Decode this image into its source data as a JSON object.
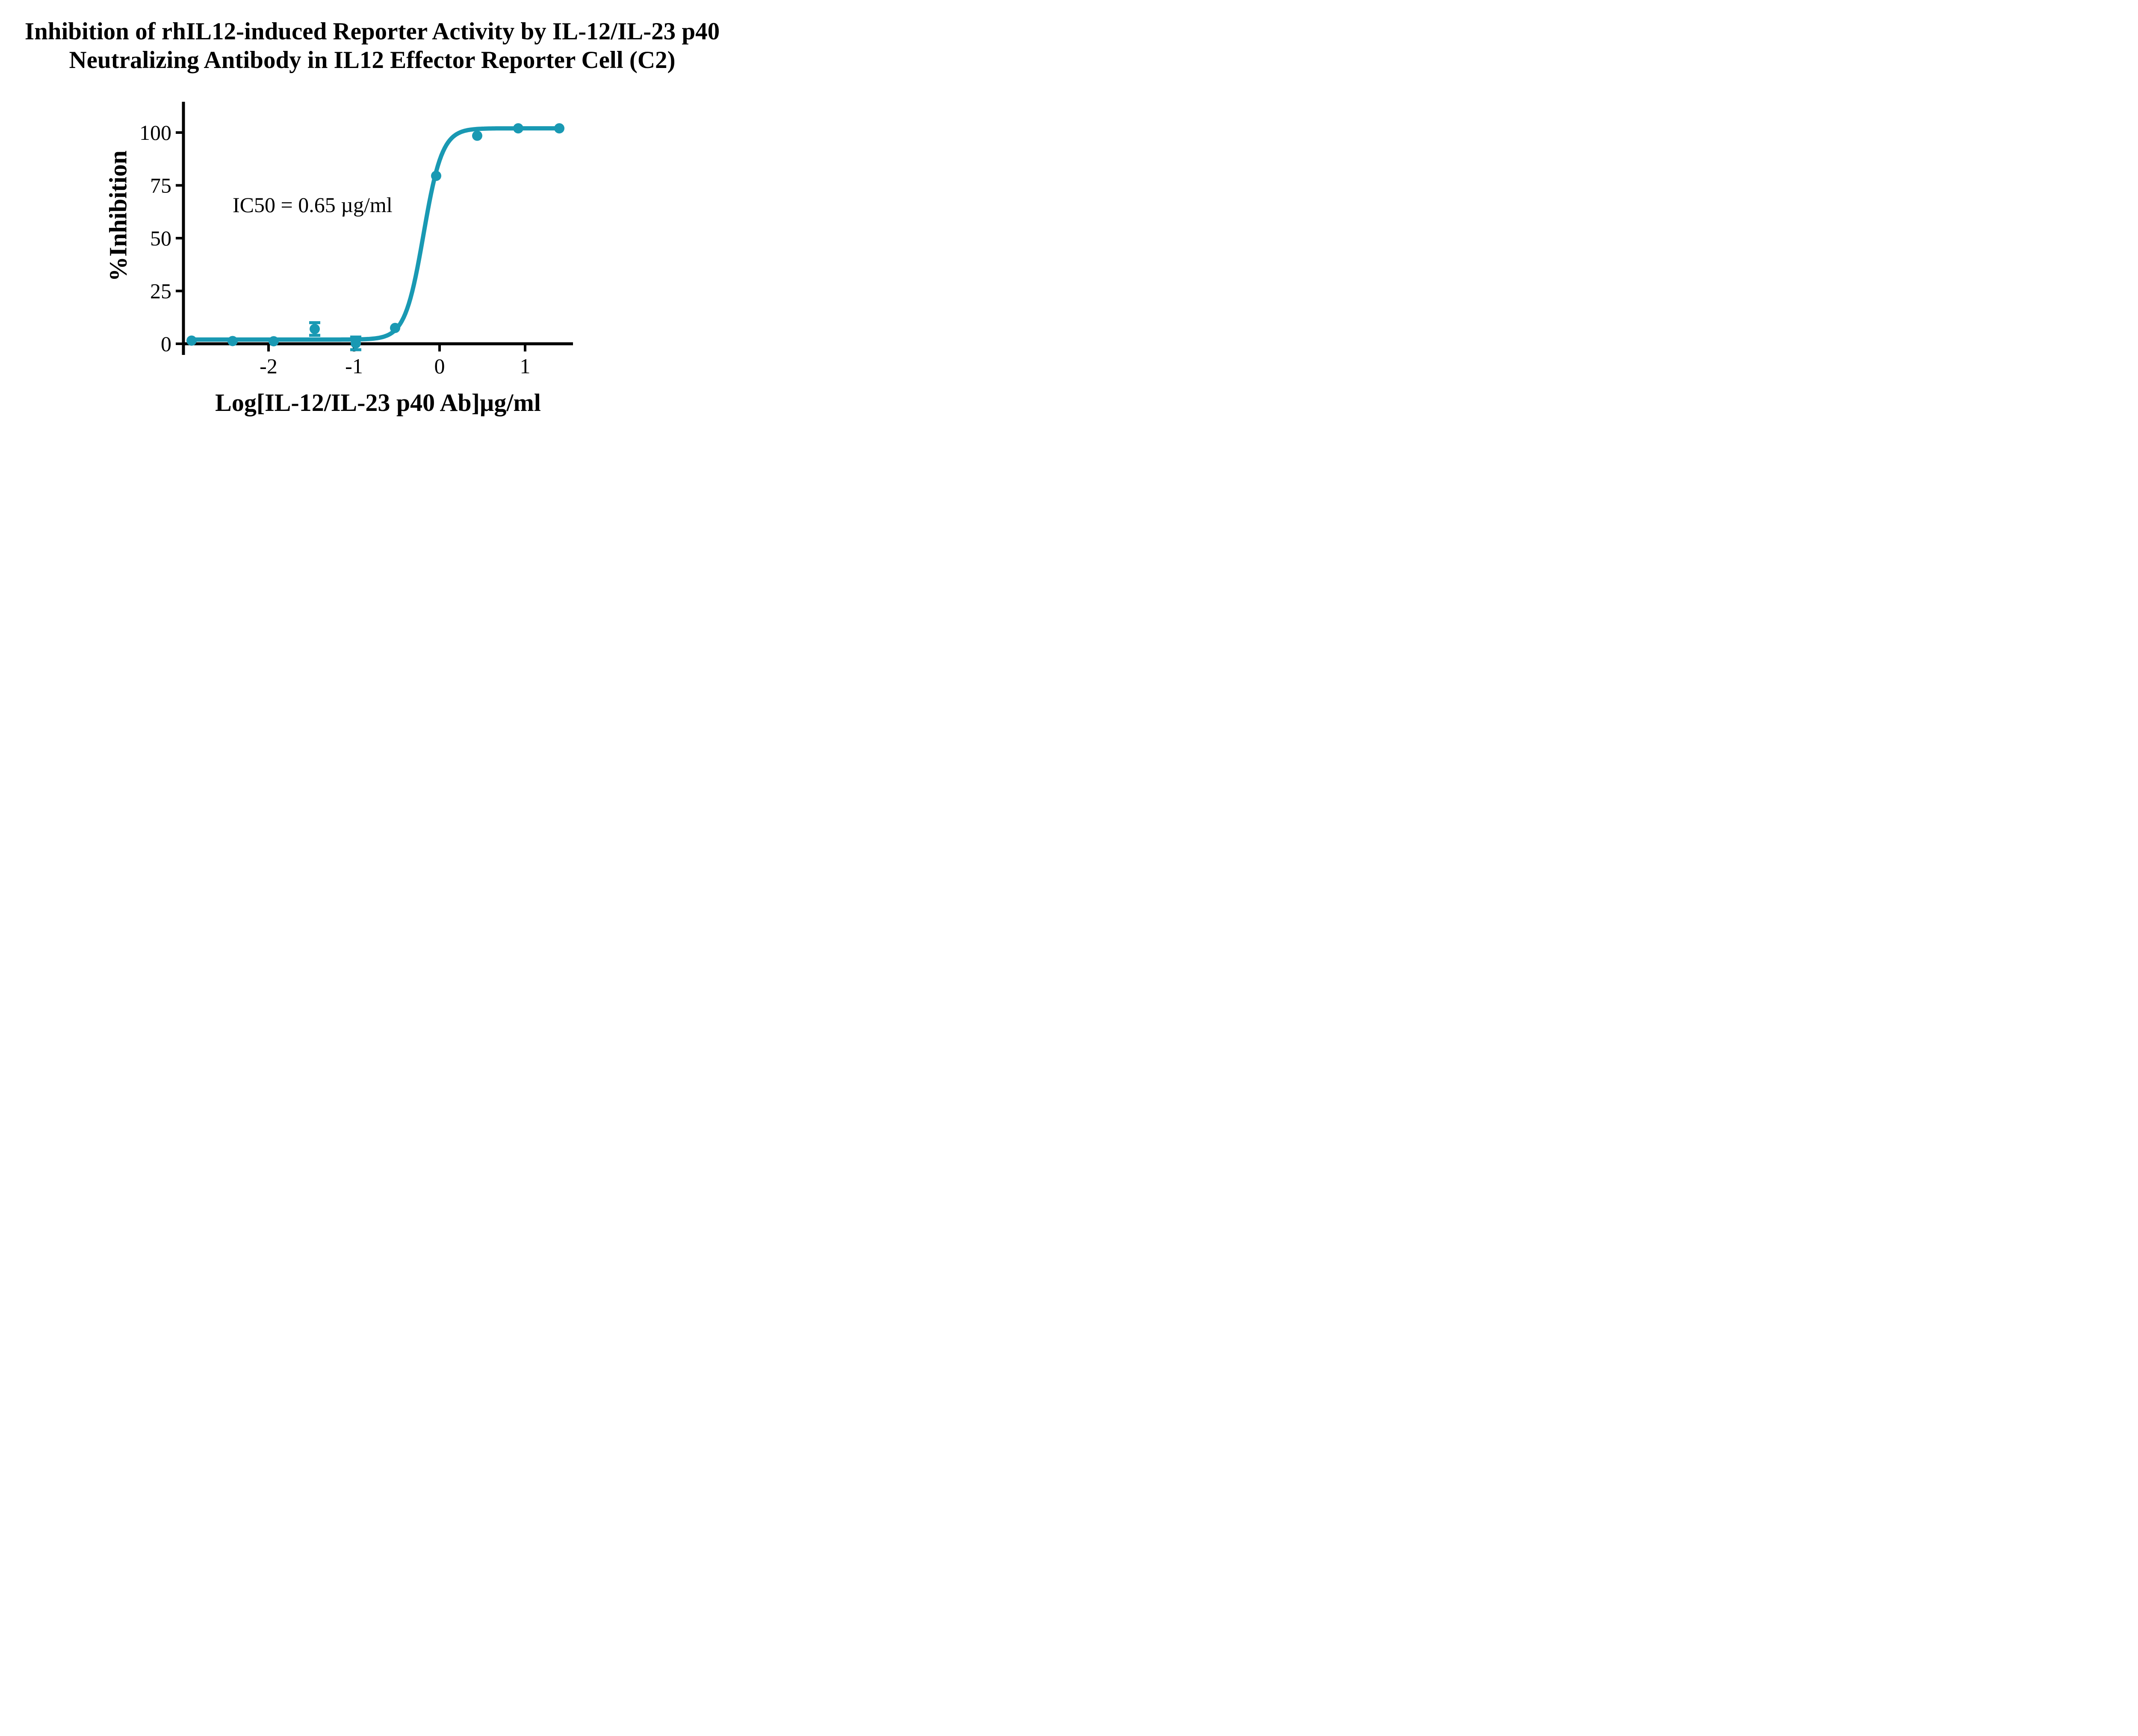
{
  "title": {
    "line1": "Inhibition of rhIL12-induced Reporter Activity by IL-12/IL-23 p40",
    "line2": "Neutralizing Antibody in IL12 Effector Reporter Cell (C2)"
  },
  "colors": {
    "curve": "#1999B3",
    "axis": "#000000",
    "text": "#000000",
    "background": "#FFFFFF"
  },
  "chart_data": {
    "type": "scatter",
    "title": "Inhibition of rhIL12-induced Reporter Activity by IL-12/IL-23 p40 Neutralizing Antibody in IL12 Effector Reporter Cell (C2)",
    "xlabel": "Log[IL-12/IL-23 p40 Ab]µg/ml",
    "ylabel": "%Inhibition",
    "ic50_annotation": "IC50 = 0.65 µg/ml",
    "x_ticks": [
      "-2",
      "-1",
      "0",
      "1"
    ],
    "y_ticks": [
      "0",
      "25",
      "50",
      "75",
      "100"
    ],
    "xlim": [
      -3.0,
      1.56
    ],
    "ylim": [
      -7,
      115
    ],
    "grid": false,
    "legend": false,
    "points": [
      {
        "log_conc": -2.9,
        "inhibition": 1.5,
        "error": null
      },
      {
        "log_conc": -2.42,
        "inhibition": 1.3,
        "error": null
      },
      {
        "log_conc": -1.94,
        "inhibition": 1.2,
        "error": null
      },
      {
        "log_conc": -1.46,
        "inhibition": 7.0,
        "error": 3.0
      },
      {
        "log_conc": -0.98,
        "inhibition": 0.2,
        "error": 3.0
      },
      {
        "log_conc": -0.52,
        "inhibition": 7.5,
        "error": null
      },
      {
        "log_conc": -0.04,
        "inhibition": 79.5,
        "error": null
      },
      {
        "log_conc": 0.44,
        "inhibition": 98.5,
        "error": null
      },
      {
        "log_conc": 0.92,
        "inhibition": 102.0,
        "error": null
      },
      {
        "log_conc": 1.4,
        "inhibition": 102.0,
        "error": null
      }
    ],
    "fit_curve": {
      "model": "four_parameter_logistic",
      "bottom": 2.0,
      "top": 102.0,
      "log_ic50": -0.187,
      "ic50_ug_ml": 0.65,
      "hill_slope": 4.0,
      "x_start": -2.9,
      "x_end": 1.4
    }
  }
}
